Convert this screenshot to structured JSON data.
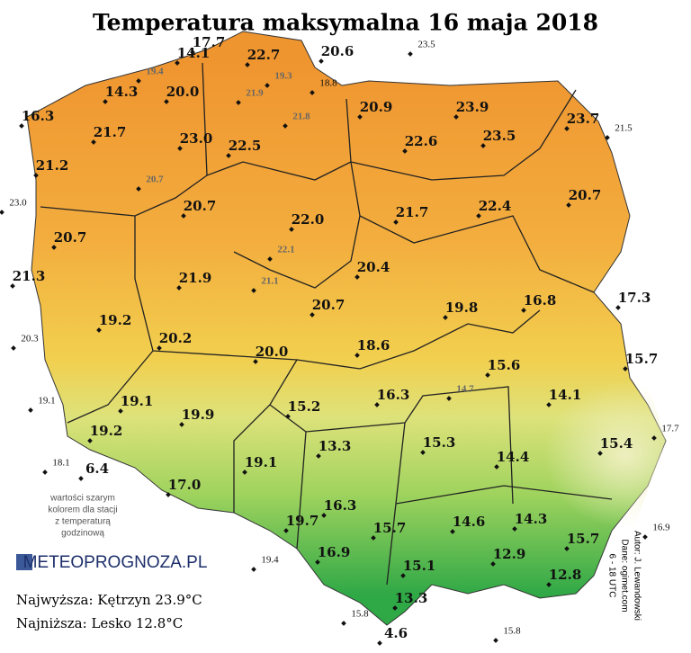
{
  "title": "Temperatura maksymalna 16 maja 2018",
  "stations": [
    "17.7",
    "14.1",
    "22.7",
    "20.6",
    "20.0",
    "14.3",
    "16.3",
    "21.7",
    "23.0",
    "22.5",
    "20.9",
    "23.9",
    "23.5",
    "22.6",
    "23.7",
    "21.2",
    "20.7",
    "22.0",
    "21.7",
    "22.4",
    "20.7",
    "20.7",
    "21.3",
    "21.9",
    "20.4",
    "19.8",
    "16.8",
    "17.3",
    "20.7",
    "19.2",
    "20.2",
    "20.0",
    "18.6",
    "15.6",
    "15.7",
    "16.3",
    "14.1",
    "19.1",
    "19.9",
    "15.2",
    "15.3",
    "15.4",
    "13.3",
    "19.2",
    "14.4",
    "6.4",
    "19.1",
    "17.0",
    "16.3",
    "19.7",
    "15.7",
    "14.6",
    "14.3",
    "15.7",
    "16.9",
    "15.1",
    "12.9",
    "12.8",
    "13.3",
    "4.6"
  ],
  "small_stations": [
    "18.8",
    "23.5",
    "21.5",
    "23.0",
    "20.3",
    "19.1",
    "18.1",
    "17.7",
    "16.9",
    "19.4",
    "15.8",
    "15.8"
  ],
  "hourly_stations": [
    "19.4",
    "19.3",
    "21.9",
    "21.8",
    "20.7",
    "22.1",
    "21.1",
    "14.7"
  ],
  "legend_note": [
    "wartości szarym",
    "kolorem dla stacji",
    "z temperaturą",
    "godzinową"
  ],
  "logo": "METEOPROGNOZA.PL",
  "highest": "Najwyższa: Kętrzyn 23.9°C",
  "lowest": "Najniższa: Lesko 12.8°C",
  "credits": [
    "Autor: J. Lewandowski",
    "Dane: ogimet.com",
    "6 - 18 UTC"
  ]
}
